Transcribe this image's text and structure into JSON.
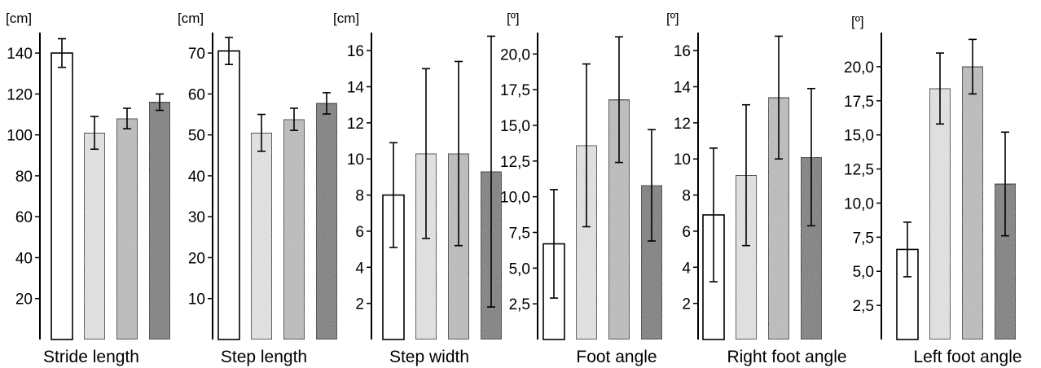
{
  "chart_data": [
    {
      "type": "bar",
      "xlabel": "Stride length",
      "unit": "[cm]",
      "ylim": [
        0,
        150
      ],
      "yticks": [
        20,
        40,
        60,
        80,
        100,
        120,
        140
      ],
      "tick_labels": [
        "20",
        "40",
        "60",
        "80",
        "100",
        "120",
        "140"
      ],
      "values": [
        140,
        101,
        108,
        116
      ],
      "errors": [
        7,
        8,
        5,
        4
      ]
    },
    {
      "type": "bar",
      "xlabel": "Step length",
      "unit": "[cm]",
      "ylim": [
        0,
        75
      ],
      "yticks": [
        10,
        20,
        30,
        40,
        50,
        60,
        70
      ],
      "tick_labels": [
        "10",
        "20",
        "30",
        "40",
        "50",
        "60",
        "70"
      ],
      "values": [
        70.5,
        50.5,
        53.8,
        57.7
      ],
      "errors": [
        3.3,
        4.5,
        2.7,
        2.6
      ]
    },
    {
      "type": "bar",
      "xlabel": "Step width",
      "unit": "[cm]",
      "ylim": [
        0,
        17
      ],
      "yticks": [
        2,
        4,
        6,
        8,
        10,
        12,
        14,
        16
      ],
      "tick_labels": [
        "2",
        "4",
        "6",
        "8",
        "10",
        "12",
        "14",
        "16"
      ],
      "values": [
        8.0,
        10.3,
        10.3,
        9.3
      ],
      "errors": [
        2.9,
        4.7,
        5.1,
        7.5
      ]
    },
    {
      "type": "bar",
      "xlabel": "Foot angle",
      "unit": "[º]",
      "ylim": [
        0,
        21.5
      ],
      "yticks": [
        2.5,
        5,
        7.5,
        10,
        12.5,
        15,
        17.5,
        20
      ],
      "tick_labels": [
        "2,5",
        "5,0",
        "7,5",
        "10,0",
        "12,5",
        "15,0",
        "17,5",
        "20,0"
      ],
      "values": [
        6.7,
        13.6,
        16.8,
        10.8
      ],
      "errors": [
        3.8,
        5.7,
        4.4,
        3.9
      ]
    },
    {
      "type": "bar",
      "xlabel": "Right foot angle",
      "unit": "[º]",
      "ylim": [
        0,
        17
      ],
      "yticks": [
        2,
        4,
        6,
        8,
        10,
        12,
        14,
        16
      ],
      "tick_labels": [
        "2",
        "4",
        "6",
        "8",
        "10",
        "12",
        "14",
        "16"
      ],
      "values": [
        6.9,
        9.1,
        13.4,
        10.1
      ],
      "errors": [
        3.7,
        3.9,
        3.4,
        3.8
      ]
    },
    {
      "type": "bar",
      "xlabel": "Left foot angle",
      "unit": "[º]",
      "ylim": [
        0,
        22.5
      ],
      "yticks": [
        2.5,
        5,
        7.5,
        10,
        12.5,
        15,
        17.5,
        20
      ],
      "tick_labels": [
        "2,5",
        "5,0",
        "7,5",
        "10,0",
        "12,5",
        "15,0",
        "17,5",
        "20,0"
      ],
      "values": [
        6.6,
        18.4,
        20.0,
        11.4
      ],
      "errors": [
        2.0,
        2.6,
        2.0,
        3.8
      ]
    }
  ],
  "bar_fills": [
    "#ffffff",
    "#e6e6e6",
    "#bdbdbd",
    "#7a7a7a"
  ]
}
